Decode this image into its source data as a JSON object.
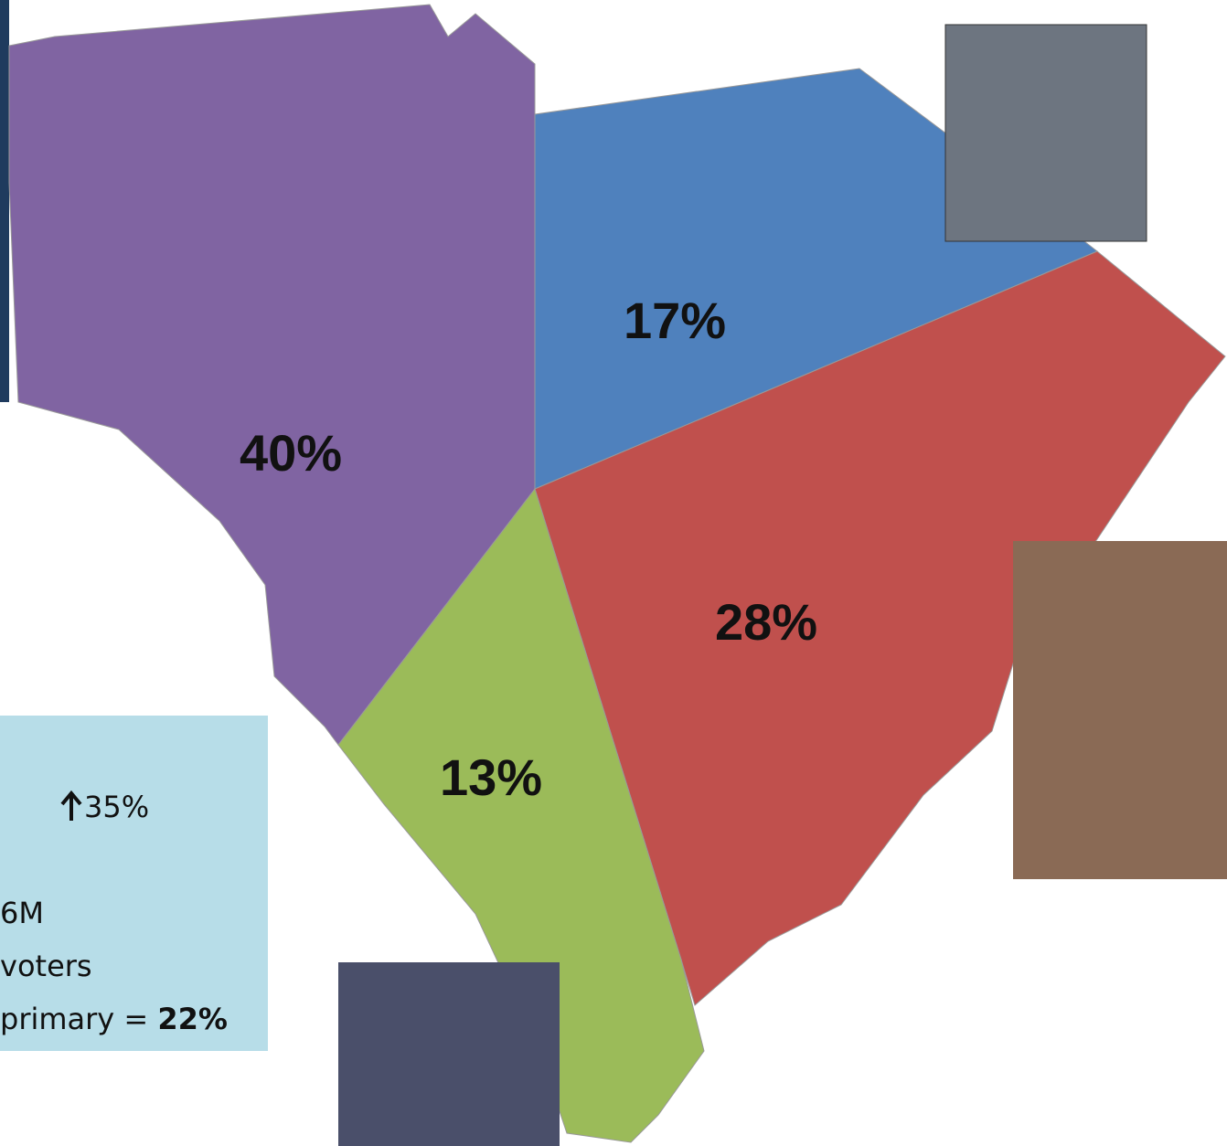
{
  "chart_data": {
    "type": "pie",
    "values": [
      40,
      17,
      28,
      13
    ],
    "value_labels": [
      "40%",
      "17%",
      "28%",
      "13%"
    ],
    "colors": [
      "#8064a2",
      "#4f81bd",
      "#c0504d",
      "#9bbb59"
    ]
  },
  "info_box": {
    "change": "35%",
    "line1": "6M",
    "line2": "voters",
    "line3_prefix": "primary =",
    "line3_value": "22%"
  }
}
